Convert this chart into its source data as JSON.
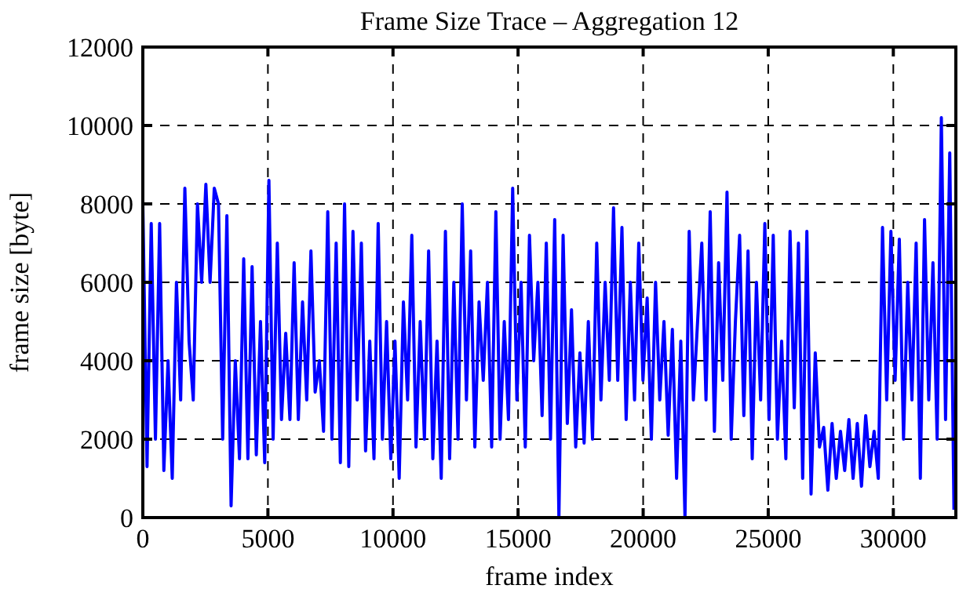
{
  "chart_data": {
    "type": "line",
    "title": "Frame Size Trace – Aggregation 12",
    "xlabel": "frame index",
    "ylabel": "frame size [byte]",
    "x": [
      0,
      168,
      336,
      504,
      672,
      840,
      1008,
      1176,
      1344,
      1512,
      1680,
      1848,
      2016,
      2184,
      2352,
      2520,
      2688,
      2856,
      3024,
      3192,
      3360,
      3528,
      3696,
      3864,
      4032,
      4200,
      4368,
      4536,
      4704,
      4872,
      5040,
      5208,
      5376,
      5544,
      5712,
      5880,
      6048,
      6216,
      6384,
      6552,
      6720,
      6888,
      7056,
      7224,
      7392,
      7560,
      7728,
      7896,
      8064,
      8232,
      8400,
      8568,
      8736,
      8904,
      9072,
      9240,
      9408,
      9576,
      9744,
      9912,
      10080,
      10248,
      10416,
      10584,
      10752,
      10920,
      11088,
      11256,
      11424,
      11592,
      11760,
      11928,
      12096,
      12264,
      12432,
      12600,
      12768,
      12936,
      13104,
      13272,
      13440,
      13608,
      13776,
      13944,
      14112,
      14280,
      14448,
      14616,
      14784,
      14952,
      15120,
      15288,
      15456,
      15624,
      15792,
      15960,
      16128,
      16296,
      16464,
      16632,
      16800,
      16968,
      17136,
      17304,
      17472,
      17640,
      17808,
      17976,
      18144,
      18312,
      18480,
      18648,
      18816,
      18984,
      19152,
      19320,
      19488,
      19656,
      19824,
      19992,
      20160,
      20328,
      20496,
      20664,
      20832,
      21000,
      21168,
      21336,
      21504,
      21672,
      21840,
      22008,
      22176,
      22344,
      22512,
      22680,
      22848,
      23016,
      23184,
      23352,
      23520,
      23688,
      23856,
      24024,
      24192,
      24360,
      24528,
      24696,
      24864,
      25032,
      25200,
      25368,
      25536,
      25704,
      25872,
      26040,
      26208,
      26376,
      26544,
      26712,
      26880,
      27048,
      27216,
      27384,
      27552,
      27720,
      27888,
      28056,
      28224,
      28392,
      28560,
      28728,
      28896,
      29064,
      29232,
      29400,
      29568,
      29736,
      29904,
      30072,
      30240,
      30408,
      30576,
      30744,
      30912,
      31080,
      31248,
      31416,
      31584,
      31752,
      31920,
      32088,
      32256,
      32424
    ],
    "series": [
      {
        "color": "#0000ff",
        "values": [
          8000,
          1300,
          7500,
          2000,
          7500,
          1200,
          4000,
          1000,
          6000,
          3000,
          8400,
          4500,
          3000,
          8000,
          6000,
          8500,
          6000,
          8400,
          8000,
          2000,
          7700,
          300,
          4000,
          1500,
          6600,
          1500,
          6400,
          1600,
          5000,
          1400,
          8600,
          2000,
          7000,
          2500,
          4700,
          2500,
          6500,
          2500,
          5500,
          3000,
          6800,
          3200,
          4000,
          2200,
          7800,
          2000,
          7000,
          1400,
          8000,
          1300,
          7300,
          3000,
          7000,
          1700,
          4500,
          1500,
          7500,
          2000,
          5000,
          1500,
          4500,
          1000,
          5500,
          3000,
          7200,
          1800,
          5000,
          2000,
          6800,
          1500,
          4500,
          1000,
          7300,
          1500,
          6000,
          2000,
          8000,
          3000,
          6800,
          1800,
          5500,
          3500,
          6000,
          1800,
          7800,
          2000,
          5000,
          2500,
          8400,
          3000,
          6000,
          1800,
          7200,
          4000,
          6000,
          2600,
          7000,
          2000,
          7600,
          0,
          7200,
          2400,
          5300,
          1800,
          4200,
          1900,
          5000,
          2000,
          7000,
          3000,
          6000,
          3500,
          7900,
          3500,
          7400,
          2500,
          6000,
          3000,
          7000,
          3500,
          5600,
          2000,
          6000,
          3000,
          5000,
          2100,
          4800,
          1000,
          4500,
          0,
          7300,
          3000,
          5000,
          7000,
          3000,
          7800,
          2200,
          6500,
          3500,
          8300,
          2000,
          5000,
          7200,
          2600,
          6800,
          1500,
          6000,
          3000,
          7500,
          2500,
          7200,
          2000,
          4500,
          1500,
          7300,
          2800,
          7000,
          1000,
          7300,
          600,
          4200,
          1800,
          2300,
          700,
          2400,
          1000,
          2200,
          1200,
          2500,
          1000,
          2400,
          800,
          2600,
          1300,
          2200,
          1000,
          7400,
          3000,
          7300,
          3500,
          7100,
          2000,
          6000,
          3000,
          7000,
          1000,
          7600,
          3000,
          6500,
          2000,
          10200,
          2500,
          9300,
          200
        ]
      }
    ],
    "xlim": [
      0,
      32500
    ],
    "ylim": [
      0,
      12000
    ],
    "xticks": [
      0,
      5000,
      10000,
      15000,
      20000,
      25000,
      30000
    ],
    "yticks": [
      0,
      2000,
      4000,
      6000,
      8000,
      10000,
      12000
    ],
    "grid": true,
    "line_style": "solid"
  }
}
